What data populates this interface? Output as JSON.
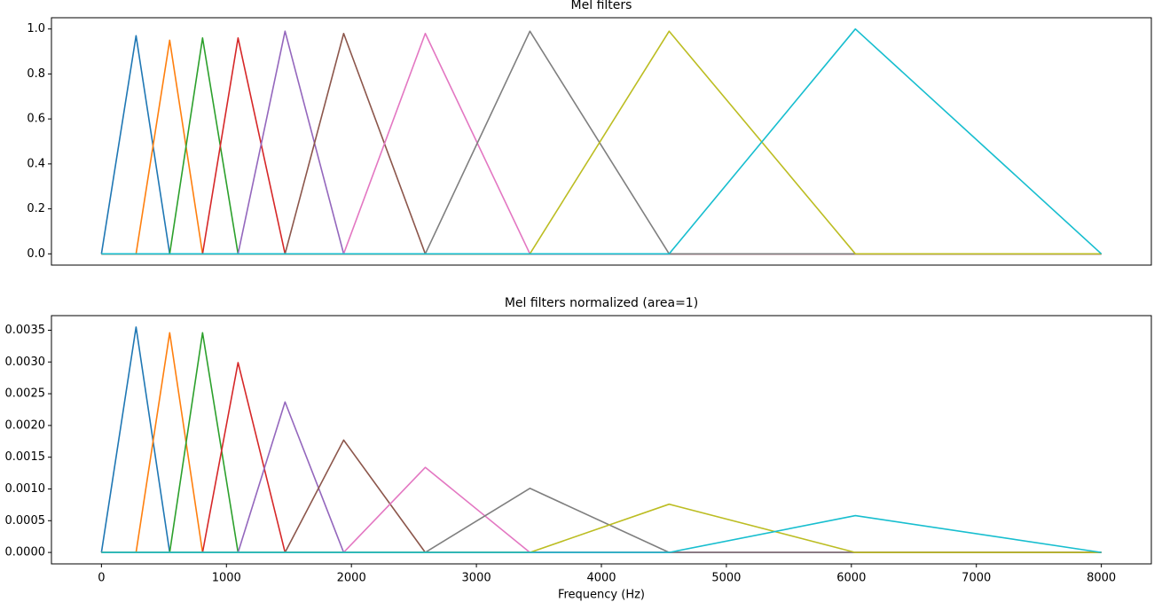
{
  "chart_data": [
    {
      "type": "line",
      "title": "Mel filters",
      "x": [
        0,
        277,
        546,
        809,
        1093,
        1469,
        1938,
        2591,
        3428,
        4542,
        6032,
        8000
      ],
      "xlim": [
        -400,
        8400
      ],
      "ylim": [
        -0.05,
        1.05
      ],
      "yticks": [
        {
          "value": 0,
          "label": "0.0"
        },
        0.2,
        0.4,
        0.6,
        0.8,
        {
          "value": 1,
          "label": "1.0"
        }
      ],
      "series": [
        {
          "color": "#1f77b4",
          "values": [
            0,
            0.97,
            0,
            0,
            0,
            0,
            0,
            0,
            0,
            0,
            0,
            0
          ]
        },
        {
          "color": "#ff7f0e",
          "values": [
            0,
            0,
            0.95,
            0,
            0,
            0,
            0,
            0,
            0,
            0,
            0,
            0
          ]
        },
        {
          "color": "#2ca02c",
          "values": [
            0,
            0,
            0,
            0.96,
            0,
            0,
            0,
            0,
            0,
            0,
            0,
            0
          ]
        },
        {
          "color": "#d62728",
          "values": [
            0,
            0,
            0,
            0,
            0.96,
            0,
            0,
            0,
            0,
            0,
            0,
            0
          ]
        },
        {
          "color": "#9467bd",
          "values": [
            0,
            0,
            0,
            0,
            0,
            0.99,
            0,
            0,
            0,
            0,
            0,
            0
          ]
        },
        {
          "color": "#8c564b",
          "values": [
            0,
            0,
            0,
            0,
            0,
            0,
            0.98,
            0,
            0,
            0,
            0,
            0
          ]
        },
        {
          "color": "#e377c2",
          "values": [
            0,
            0,
            0,
            0,
            0,
            0,
            0,
            0.98,
            0,
            0,
            0,
            0
          ]
        },
        {
          "color": "#7f7f7f",
          "values": [
            0,
            0,
            0,
            0,
            0,
            0,
            0,
            0,
            0.99,
            0,
            0,
            0
          ]
        },
        {
          "color": "#bcbd22",
          "values": [
            0,
            0,
            0,
            0,
            0,
            0,
            0,
            0,
            0,
            0.99,
            0,
            0
          ]
        },
        {
          "color": "#17becf",
          "values": [
            0,
            0,
            0,
            0,
            0,
            0,
            0,
            0,
            0,
            0,
            1.0,
            0
          ]
        }
      ]
    },
    {
      "type": "line",
      "title": "Mel filters normalized (area=1)",
      "x_label": "Frequency (Hz)",
      "x": [
        0,
        277,
        546,
        809,
        1093,
        1469,
        1938,
        2591,
        3428,
        4542,
        6032,
        8000
      ],
      "xlim": [
        -400,
        8400
      ],
      "xticks": [
        0,
        1000,
        2000,
        3000,
        4000,
        5000,
        6000,
        7000,
        8000
      ],
      "ylim": [
        -0.00018,
        0.00373
      ],
      "yticks": [
        {
          "value": 0,
          "label": "0.0000"
        },
        {
          "value": 0.0005,
          "label": "0.0005"
        },
        {
          "value": 0.001,
          "label": "0.0010"
        },
        {
          "value": 0.0015,
          "label": "0.0015"
        },
        {
          "value": 0.002,
          "label": "0.0020"
        },
        {
          "value": 0.0025,
          "label": "0.0025"
        },
        {
          "value": 0.003,
          "label": "0.0030"
        },
        {
          "value": 0.0035,
          "label": "0.0035"
        }
      ],
      "series": [
        {
          "color": "#1f77b4",
          "values": [
            0,
            0.00355,
            0,
            0,
            0,
            0,
            0,
            0,
            0,
            0,
            0,
            0
          ]
        },
        {
          "color": "#ff7f0e",
          "values": [
            0,
            0,
            0.00346,
            0,
            0,
            0,
            0,
            0,
            0,
            0,
            0,
            0
          ]
        },
        {
          "color": "#2ca02c",
          "values": [
            0,
            0,
            0,
            0.00346,
            0,
            0,
            0,
            0,
            0,
            0,
            0,
            0
          ]
        },
        {
          "color": "#d62728",
          "values": [
            0,
            0,
            0,
            0,
            0.00299,
            0,
            0,
            0,
            0,
            0,
            0,
            0
          ]
        },
        {
          "color": "#9467bd",
          "values": [
            0,
            0,
            0,
            0,
            0,
            0.00237,
            0,
            0,
            0,
            0,
            0,
            0
          ]
        },
        {
          "color": "#8c564b",
          "values": [
            0,
            0,
            0,
            0,
            0,
            0,
            0.00177,
            0,
            0,
            0,
            0,
            0
          ]
        },
        {
          "color": "#e377c2",
          "values": [
            0,
            0,
            0,
            0,
            0,
            0,
            0,
            0.00134,
            0,
            0,
            0,
            0
          ]
        },
        {
          "color": "#7f7f7f",
          "values": [
            0,
            0,
            0,
            0,
            0,
            0,
            0,
            0,
            0.00101,
            0,
            0,
            0
          ]
        },
        {
          "color": "#bcbd22",
          "values": [
            0,
            0,
            0,
            0,
            0,
            0,
            0,
            0,
            0,
            0.00076,
            0,
            0
          ]
        },
        {
          "color": "#17becf",
          "values": [
            0,
            0,
            0,
            0,
            0,
            0,
            0,
            0,
            0,
            0,
            0.00058,
            0
          ]
        }
      ]
    }
  ]
}
